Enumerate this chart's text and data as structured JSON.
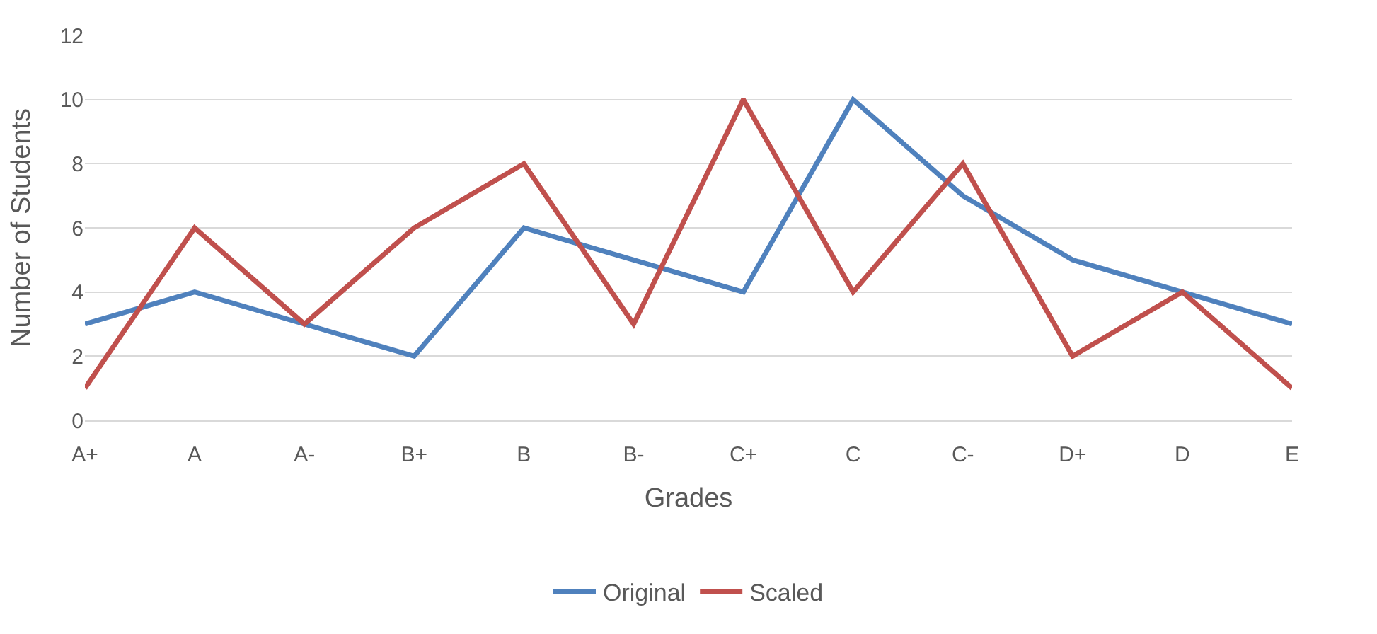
{
  "chart_data": {
    "type": "line",
    "xlabel": "Grades",
    "ylabel": "Number of Students",
    "categories": [
      "A+",
      "A",
      "A-",
      "B+",
      "B",
      "B-",
      "C+",
      "C",
      "C-",
      "D+",
      "D",
      "E"
    ],
    "series": [
      {
        "name": "Original",
        "color": "#4f81bd",
        "values": [
          3,
          4,
          3,
          2,
          6,
          5,
          4,
          10,
          7,
          5,
          4,
          3
        ]
      },
      {
        "name": "Scaled",
        "color": "#c0504d",
        "values": [
          1,
          6,
          3,
          6,
          8,
          3,
          10,
          4,
          8,
          2,
          4,
          1
        ]
      }
    ],
    "ylim": [
      0,
      12
    ],
    "yticks": [
      0,
      2,
      4,
      6,
      8,
      10,
      12
    ],
    "grid": "y",
    "legend": "bottom",
    "marker": "none",
    "line_style": "solid"
  }
}
